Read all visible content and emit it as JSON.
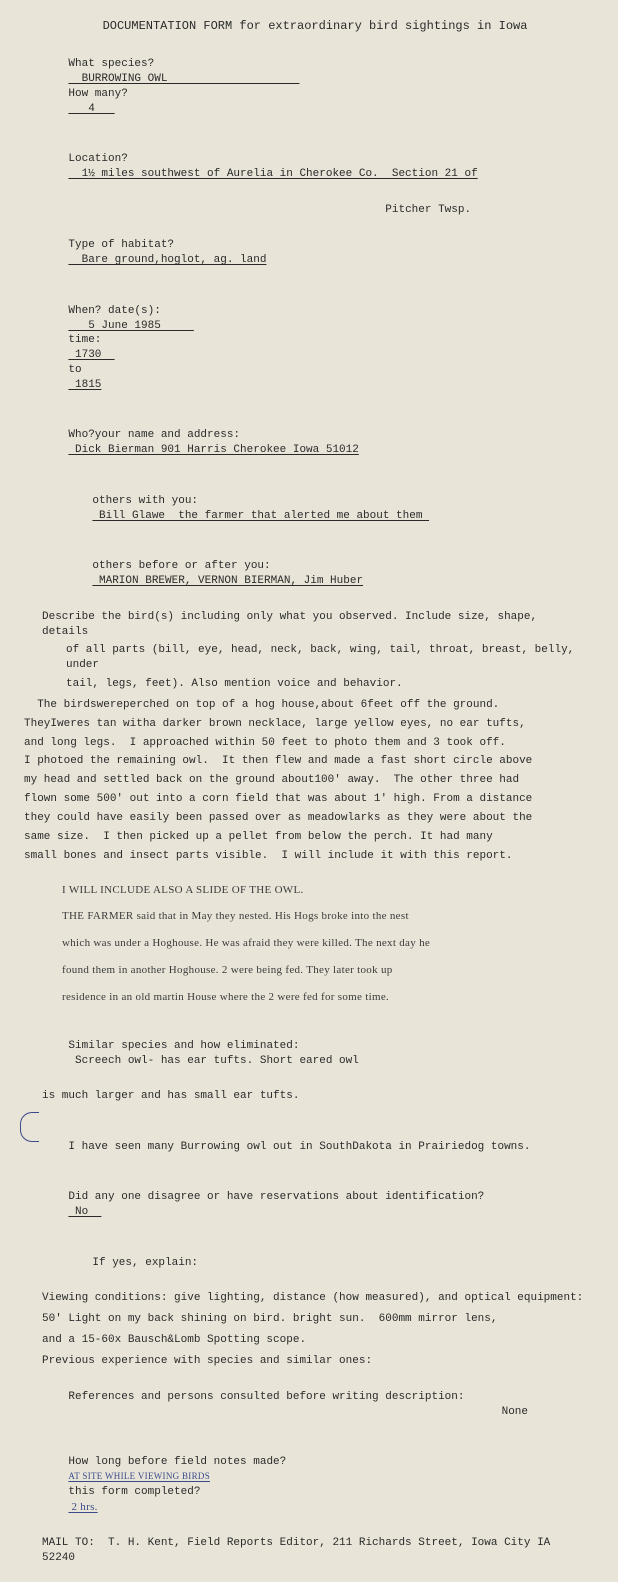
{
  "title": "DOCUMENTATION FORM for extraordinary bird sightings in Iowa",
  "q": {
    "species": "What species?",
    "howmany": "How many?",
    "location": "Location?",
    "habitat": "Type of habitat?",
    "when": "When? date(s):",
    "time": "time:",
    "to": "to",
    "who": "Who?your name and address:",
    "others_with": "others with you:",
    "others_before": "others before or after you:",
    "describe1": "Describe the bird(s) including only what you observed. Include size, shape, details",
    "describe2": "of all parts (bill, eye, head, neck, back, wing, tail, throat, breast, belly, under",
    "describe3": "tail, legs, feet). Also mention voice and behavior.",
    "similar": "Similar species and how eliminated:",
    "disagree": "Did any one disagree or have reservations about identification?",
    "ifyes": "If yes, explain:",
    "viewing": "Viewing conditions: give lighting, distance (how measured), and optical equipment:",
    "prev": "Previous experience with species and similar ones:",
    "refs": "References and persons consulted before writing description:",
    "howlong1": "How long before field notes made?",
    "howlong2": "this form completed?",
    "mailto": "MAIL TO:  T. H. Kent, Field Reports Editor, 211 Richards Street, Iowa City IA 52240"
  },
  "a": {
    "species": "  BURROWING OWL                    ",
    "howmany": "   4   ",
    "location": "  1½ miles southwest of Aurelia in Cherokee Co.  Section 21 of",
    "location2": "                                                    Pitcher Twsp.",
    "habitat": "  Bare ground,hoglot, ag. land",
    "date": "   5 June 1985     ",
    "time1": " 1730  ",
    "time2": " 1815",
    "who": " Dick Bierman 901 Harris Cherokee Iowa 51012",
    "others_with": " Bill Glawe  the farmer that alerted me about them ",
    "others_before": " MARION BREWER, VERNON BIERMAN, Jim Huber",
    "similar": " Screech owl- has ear tufts. Short eared owl",
    "similar2": "is much larger and has small ear tufts.",
    "south_dakota": "I have seen many Burrowing owl out in SouthDakota in Prairiedog towns.",
    "disagree": " No  ",
    "viewing1": "50' Light on my back shining on bird. bright sun.  600mm mirror lens,",
    "viewing2": "and a 15-60x Bausch&Lomb Spotting scope.",
    "refs": "None",
    "howlong1": "AT SITE WHILE VIEWING BIRDS",
    "howlong2": " 2 hrs."
  },
  "body": {
    "l1": "  The birdswereperched on top of a hog house,about 6feet off the ground.",
    "l2": "TheyIweres tan witha darker brown necklace, large yellow eyes, no ear tufts,",
    "l3": "and long legs.  I approached within 50 feet to photo them and 3 took off.",
    "l4": "I photoed the remaining owl.  It then flew and made a fast short circle above",
    "l5": "my head and settled back on the ground about100' away.  The other three had",
    "l6": "flown some 500' out into a corn field that was about 1' high. From a distance",
    "l7": "they could have easily been passed over as meadowlarks as they were about the",
    "l8": "same size.  I then picked up a pellet from below the perch. It had many",
    "l9": "small bones and insect parts visible.  I will include it with this report."
  },
  "hand": {
    "h1": "I WILL INCLUDE ALSO A SLIDE OF THE OWL.",
    "h2": "THE FARMER said that in May they nested. His Hogs broke into the nest",
    "h3": "which was under a Hoghouse. He was afraid they were killed. The next day he",
    "h4": "found them in another Hoghouse. 2 were being fed. They later took up",
    "h5": "residence in an old martin House where the 2 were fed for some time."
  }
}
